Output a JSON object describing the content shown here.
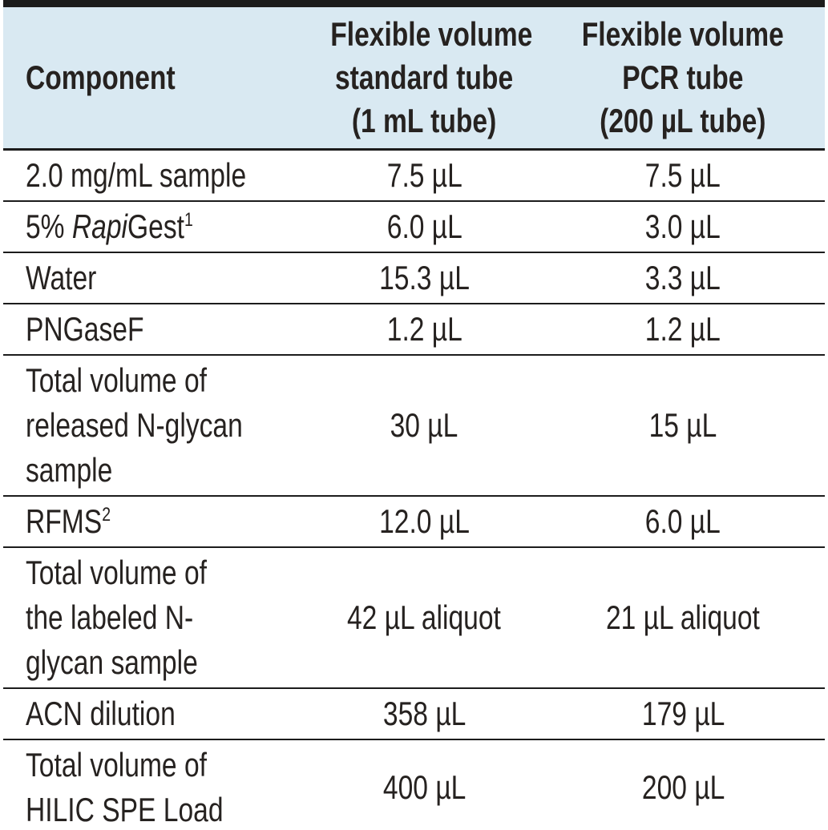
{
  "colors": {
    "header_bg": "#d9e9f2",
    "rule": "#1c1c1c",
    "text": "#262220"
  },
  "table": {
    "header": {
      "component_label": "Component",
      "standard_tube": {
        "lines": [
          "Flexible volume",
          "standard tube",
          "(1 mL tube)"
        ]
      },
      "pcr_tube": {
        "lines": [
          "Flexible volume",
          "PCR tube",
          "(200 µL tube)"
        ]
      }
    },
    "rows": [
      {
        "component": "2.0 mg/mL sample",
        "standard": "7.5 µL",
        "pcr": "7.5 µL"
      },
      {
        "component_prefix": "5% ",
        "component_italic": "Rapi",
        "component_suffix": "Gest",
        "footnote": "1",
        "standard": "6.0 µL",
        "pcr": "3.0 µL"
      },
      {
        "component": "Water",
        "standard": "15.3 µL",
        "pcr": "3.3 µL"
      },
      {
        "component": "PNGaseF",
        "standard": "1.2 µL",
        "pcr": "1.2 µL"
      },
      {
        "component": "Total volume of released N-glycan sample",
        "standard": "30 µL",
        "pcr": "15 µL"
      },
      {
        "component": "RFMS",
        "footnote": "2",
        "standard": "12.0 µL",
        "pcr": "6.0 µL"
      },
      {
        "component": "Total volume of the labeled N-glycan sample",
        "standard": "42 µL aliquot",
        "pcr": "21 µL aliquot"
      },
      {
        "component": "ACN dilution",
        "standard": "358 µL",
        "pcr": "179 µL"
      },
      {
        "component": "Total volume of HILIC SPE Load",
        "standard": "400 µL",
        "pcr": "200 µL"
      }
    ]
  }
}
